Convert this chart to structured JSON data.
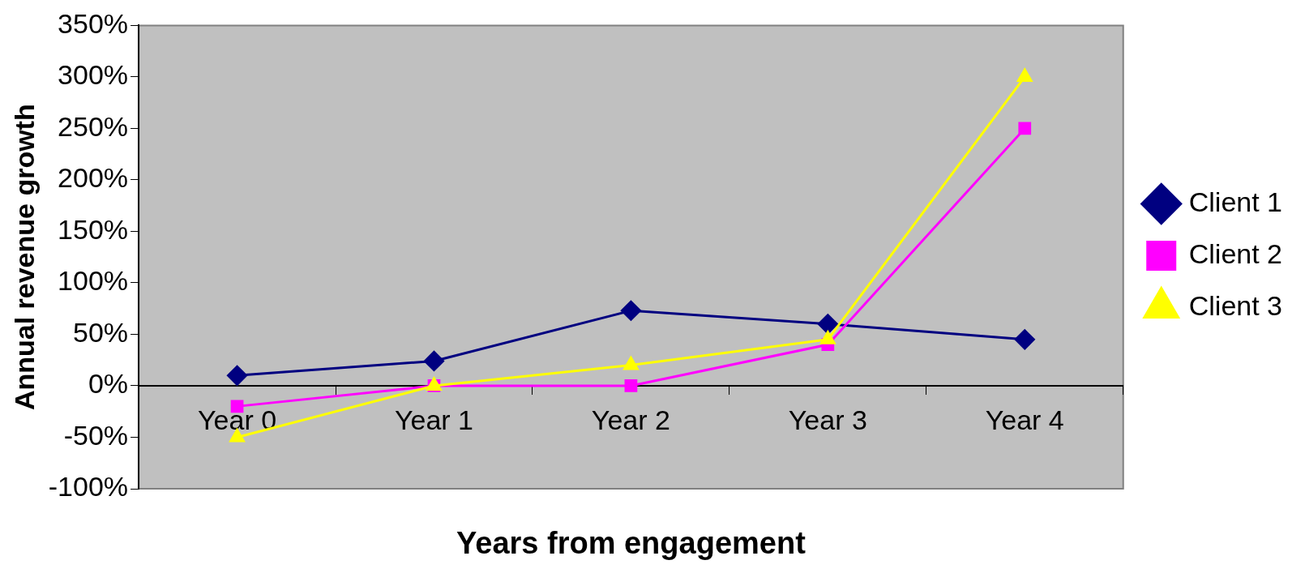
{
  "chart_data": {
    "type": "line",
    "xlabel": "Years from engagement",
    "ylabel": "Annual revenue growth",
    "categories": [
      "Year 0",
      "Year 1",
      "Year 2",
      "Year 3",
      "Year 4"
    ],
    "series": [
      {
        "name": "Client 1",
        "color": "#000080",
        "marker": "diamond",
        "values": [
          10,
          24,
          73,
          60,
          45
        ]
      },
      {
        "name": "Client 2",
        "color": "#ff00ff",
        "marker": "square",
        "values": [
          -20,
          0,
          0,
          40,
          250
        ]
      },
      {
        "name": "Client 3",
        "color": "#ffff00",
        "marker": "triangle",
        "values": [
          -50,
          0,
          20,
          45,
          300
        ]
      }
    ],
    "ylim": [
      -100,
      350
    ],
    "yticks": [
      {
        "value": -100,
        "label": "-100%"
      },
      {
        "value": -50,
        "label": "-50%"
      },
      {
        "value": 0,
        "label": "0%"
      },
      {
        "value": 50,
        "label": "50%"
      },
      {
        "value": 100,
        "label": "100%"
      },
      {
        "value": 150,
        "label": "150%"
      },
      {
        "value": 200,
        "label": "200%"
      },
      {
        "value": 250,
        "label": "250%"
      },
      {
        "value": 300,
        "label": "300%"
      },
      {
        "value": 350,
        "label": "350%"
      }
    ],
    "legend": "right",
    "line_style": "solid"
  }
}
